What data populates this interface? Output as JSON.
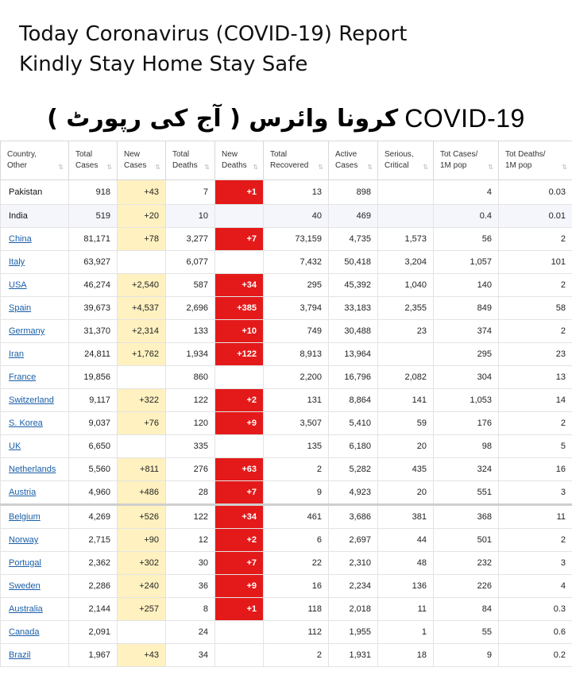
{
  "header": {
    "line1": "Today Coronavirus (COVID-19) Report",
    "line2": "Kindly Stay Home Stay Safe"
  },
  "banner": {
    "urdu": "کرونا وائرس ( آج کی رپورٹ )",
    "english": "COVID-19"
  },
  "table": {
    "columns": [
      {
        "line1": "Country,",
        "line2": "Other"
      },
      {
        "line1": "Total",
        "line2": "Cases"
      },
      {
        "line1": "New",
        "line2": "Cases"
      },
      {
        "line1": "Total",
        "line2": "Deaths"
      },
      {
        "line1": "New",
        "line2": "Deaths"
      },
      {
        "line1": "Total",
        "line2": "Recovered"
      },
      {
        "line1": "Active",
        "line2": "Cases"
      },
      {
        "line1": "Serious,",
        "line2": "Critical"
      },
      {
        "line1": "Tot Cases/",
        "line2": "1M pop"
      },
      {
        "line1": "Tot Deaths/",
        "line2": "1M pop"
      }
    ],
    "rows": [
      {
        "country": "Pakistan",
        "link": false,
        "total_cases": "918",
        "new_cases": "+43",
        "total_deaths": "7",
        "new_deaths": "+1",
        "total_recovered": "13",
        "active_cases": "898",
        "serious": "",
        "cases_per_1m": "4",
        "deaths_per_1m": "0.03"
      },
      {
        "country": "India",
        "link": false,
        "total_cases": "519",
        "new_cases": "+20",
        "total_deaths": "10",
        "new_deaths": "",
        "total_recovered": "40",
        "active_cases": "469",
        "serious": "",
        "cases_per_1m": "0.4",
        "deaths_per_1m": "0.01"
      },
      {
        "country": "China",
        "link": true,
        "total_cases": "81,171",
        "new_cases": "+78",
        "total_deaths": "3,277",
        "new_deaths": "+7",
        "total_recovered": "73,159",
        "active_cases": "4,735",
        "serious": "1,573",
        "cases_per_1m": "56",
        "deaths_per_1m": "2"
      },
      {
        "country": "Italy",
        "link": true,
        "total_cases": "63,927",
        "new_cases": "",
        "total_deaths": "6,077",
        "new_deaths": "",
        "total_recovered": "7,432",
        "active_cases": "50,418",
        "serious": "3,204",
        "cases_per_1m": "1,057",
        "deaths_per_1m": "101"
      },
      {
        "country": "USA",
        "link": true,
        "total_cases": "46,274",
        "new_cases": "+2,540",
        "total_deaths": "587",
        "new_deaths": "+34",
        "total_recovered": "295",
        "active_cases": "45,392",
        "serious": "1,040",
        "cases_per_1m": "140",
        "deaths_per_1m": "2"
      },
      {
        "country": "Spain",
        "link": true,
        "total_cases": "39,673",
        "new_cases": "+4,537",
        "total_deaths": "2,696",
        "new_deaths": "+385",
        "total_recovered": "3,794",
        "active_cases": "33,183",
        "serious": "2,355",
        "cases_per_1m": "849",
        "deaths_per_1m": "58"
      },
      {
        "country": "Germany",
        "link": true,
        "total_cases": "31,370",
        "new_cases": "+2,314",
        "total_deaths": "133",
        "new_deaths": "+10",
        "total_recovered": "749",
        "active_cases": "30,488",
        "serious": "23",
        "cases_per_1m": "374",
        "deaths_per_1m": "2"
      },
      {
        "country": "Iran",
        "link": true,
        "total_cases": "24,811",
        "new_cases": "+1,762",
        "total_deaths": "1,934",
        "new_deaths": "+122",
        "total_recovered": "8,913",
        "active_cases": "13,964",
        "serious": "",
        "cases_per_1m": "295",
        "deaths_per_1m": "23"
      },
      {
        "country": "France",
        "link": true,
        "total_cases": "19,856",
        "new_cases": "",
        "total_deaths": "860",
        "new_deaths": "",
        "total_recovered": "2,200",
        "active_cases": "16,796",
        "serious": "2,082",
        "cases_per_1m": "304",
        "deaths_per_1m": "13"
      },
      {
        "country": "Switzerland",
        "link": true,
        "total_cases": "9,117",
        "new_cases": "+322",
        "total_deaths": "122",
        "new_deaths": "+2",
        "total_recovered": "131",
        "active_cases": "8,864",
        "serious": "141",
        "cases_per_1m": "1,053",
        "deaths_per_1m": "14"
      },
      {
        "country": "S. Korea",
        "link": true,
        "total_cases": "9,037",
        "new_cases": "+76",
        "total_deaths": "120",
        "new_deaths": "+9",
        "total_recovered": "3,507",
        "active_cases": "5,410",
        "serious": "59",
        "cases_per_1m": "176",
        "deaths_per_1m": "2"
      },
      {
        "country": "UK",
        "link": true,
        "total_cases": "6,650",
        "new_cases": "",
        "total_deaths": "335",
        "new_deaths": "",
        "total_recovered": "135",
        "active_cases": "6,180",
        "serious": "20",
        "cases_per_1m": "98",
        "deaths_per_1m": "5"
      },
      {
        "country": "Netherlands",
        "link": true,
        "total_cases": "5,560",
        "new_cases": "+811",
        "total_deaths": "276",
        "new_deaths": "+63",
        "total_recovered": "2",
        "active_cases": "5,282",
        "serious": "435",
        "cases_per_1m": "324",
        "deaths_per_1m": "16"
      },
      {
        "country": "Austria",
        "link": true,
        "total_cases": "4,960",
        "new_cases": "+486",
        "total_deaths": "28",
        "new_deaths": "+7",
        "total_recovered": "9",
        "active_cases": "4,923",
        "serious": "20",
        "cases_per_1m": "551",
        "deaths_per_1m": "3"
      },
      {
        "country": "Belgium",
        "link": true,
        "total_cases": "4,269",
        "new_cases": "+526",
        "total_deaths": "122",
        "new_deaths": "+34",
        "total_recovered": "461",
        "active_cases": "3,686",
        "serious": "381",
        "cases_per_1m": "368",
        "deaths_per_1m": "11"
      },
      {
        "country": "Norway",
        "link": true,
        "total_cases": "2,715",
        "new_cases": "+90",
        "total_deaths": "12",
        "new_deaths": "+2",
        "total_recovered": "6",
        "active_cases": "2,697",
        "serious": "44",
        "cases_per_1m": "501",
        "deaths_per_1m": "2"
      },
      {
        "country": "Portugal",
        "link": true,
        "total_cases": "2,362",
        "new_cases": "+302",
        "total_deaths": "30",
        "new_deaths": "+7",
        "total_recovered": "22",
        "active_cases": "2,310",
        "serious": "48",
        "cases_per_1m": "232",
        "deaths_per_1m": "3"
      },
      {
        "country": "Sweden",
        "link": true,
        "total_cases": "2,286",
        "new_cases": "+240",
        "total_deaths": "36",
        "new_deaths": "+9",
        "total_recovered": "16",
        "active_cases": "2,234",
        "serious": "136",
        "cases_per_1m": "226",
        "deaths_per_1m": "4"
      },
      {
        "country": "Australia",
        "link": true,
        "total_cases": "2,144",
        "new_cases": "+257",
        "total_deaths": "8",
        "new_deaths": "+1",
        "total_recovered": "118",
        "active_cases": "2,018",
        "serious": "11",
        "cases_per_1m": "84",
        "deaths_per_1m": "0.3"
      },
      {
        "country": "Canada",
        "link": true,
        "total_cases": "2,091",
        "new_cases": "",
        "total_deaths": "24",
        "new_deaths": "",
        "total_recovered": "112",
        "active_cases": "1,955",
        "serious": "1",
        "cases_per_1m": "55",
        "deaths_per_1m": "0.6"
      },
      {
        "country": "Brazil",
        "link": true,
        "total_cases": "1,967",
        "new_cases": "+43",
        "total_deaths": "34",
        "new_deaths": "",
        "total_recovered": "2",
        "active_cases": "1,931",
        "serious": "18",
        "cases_per_1m": "9",
        "deaths_per_1m": "0.2"
      }
    ]
  },
  "colors": {
    "new_cases_highlight": "#fff1c0",
    "new_deaths_highlight": "#e41a1a",
    "country_link": "#1a5fa8"
  }
}
